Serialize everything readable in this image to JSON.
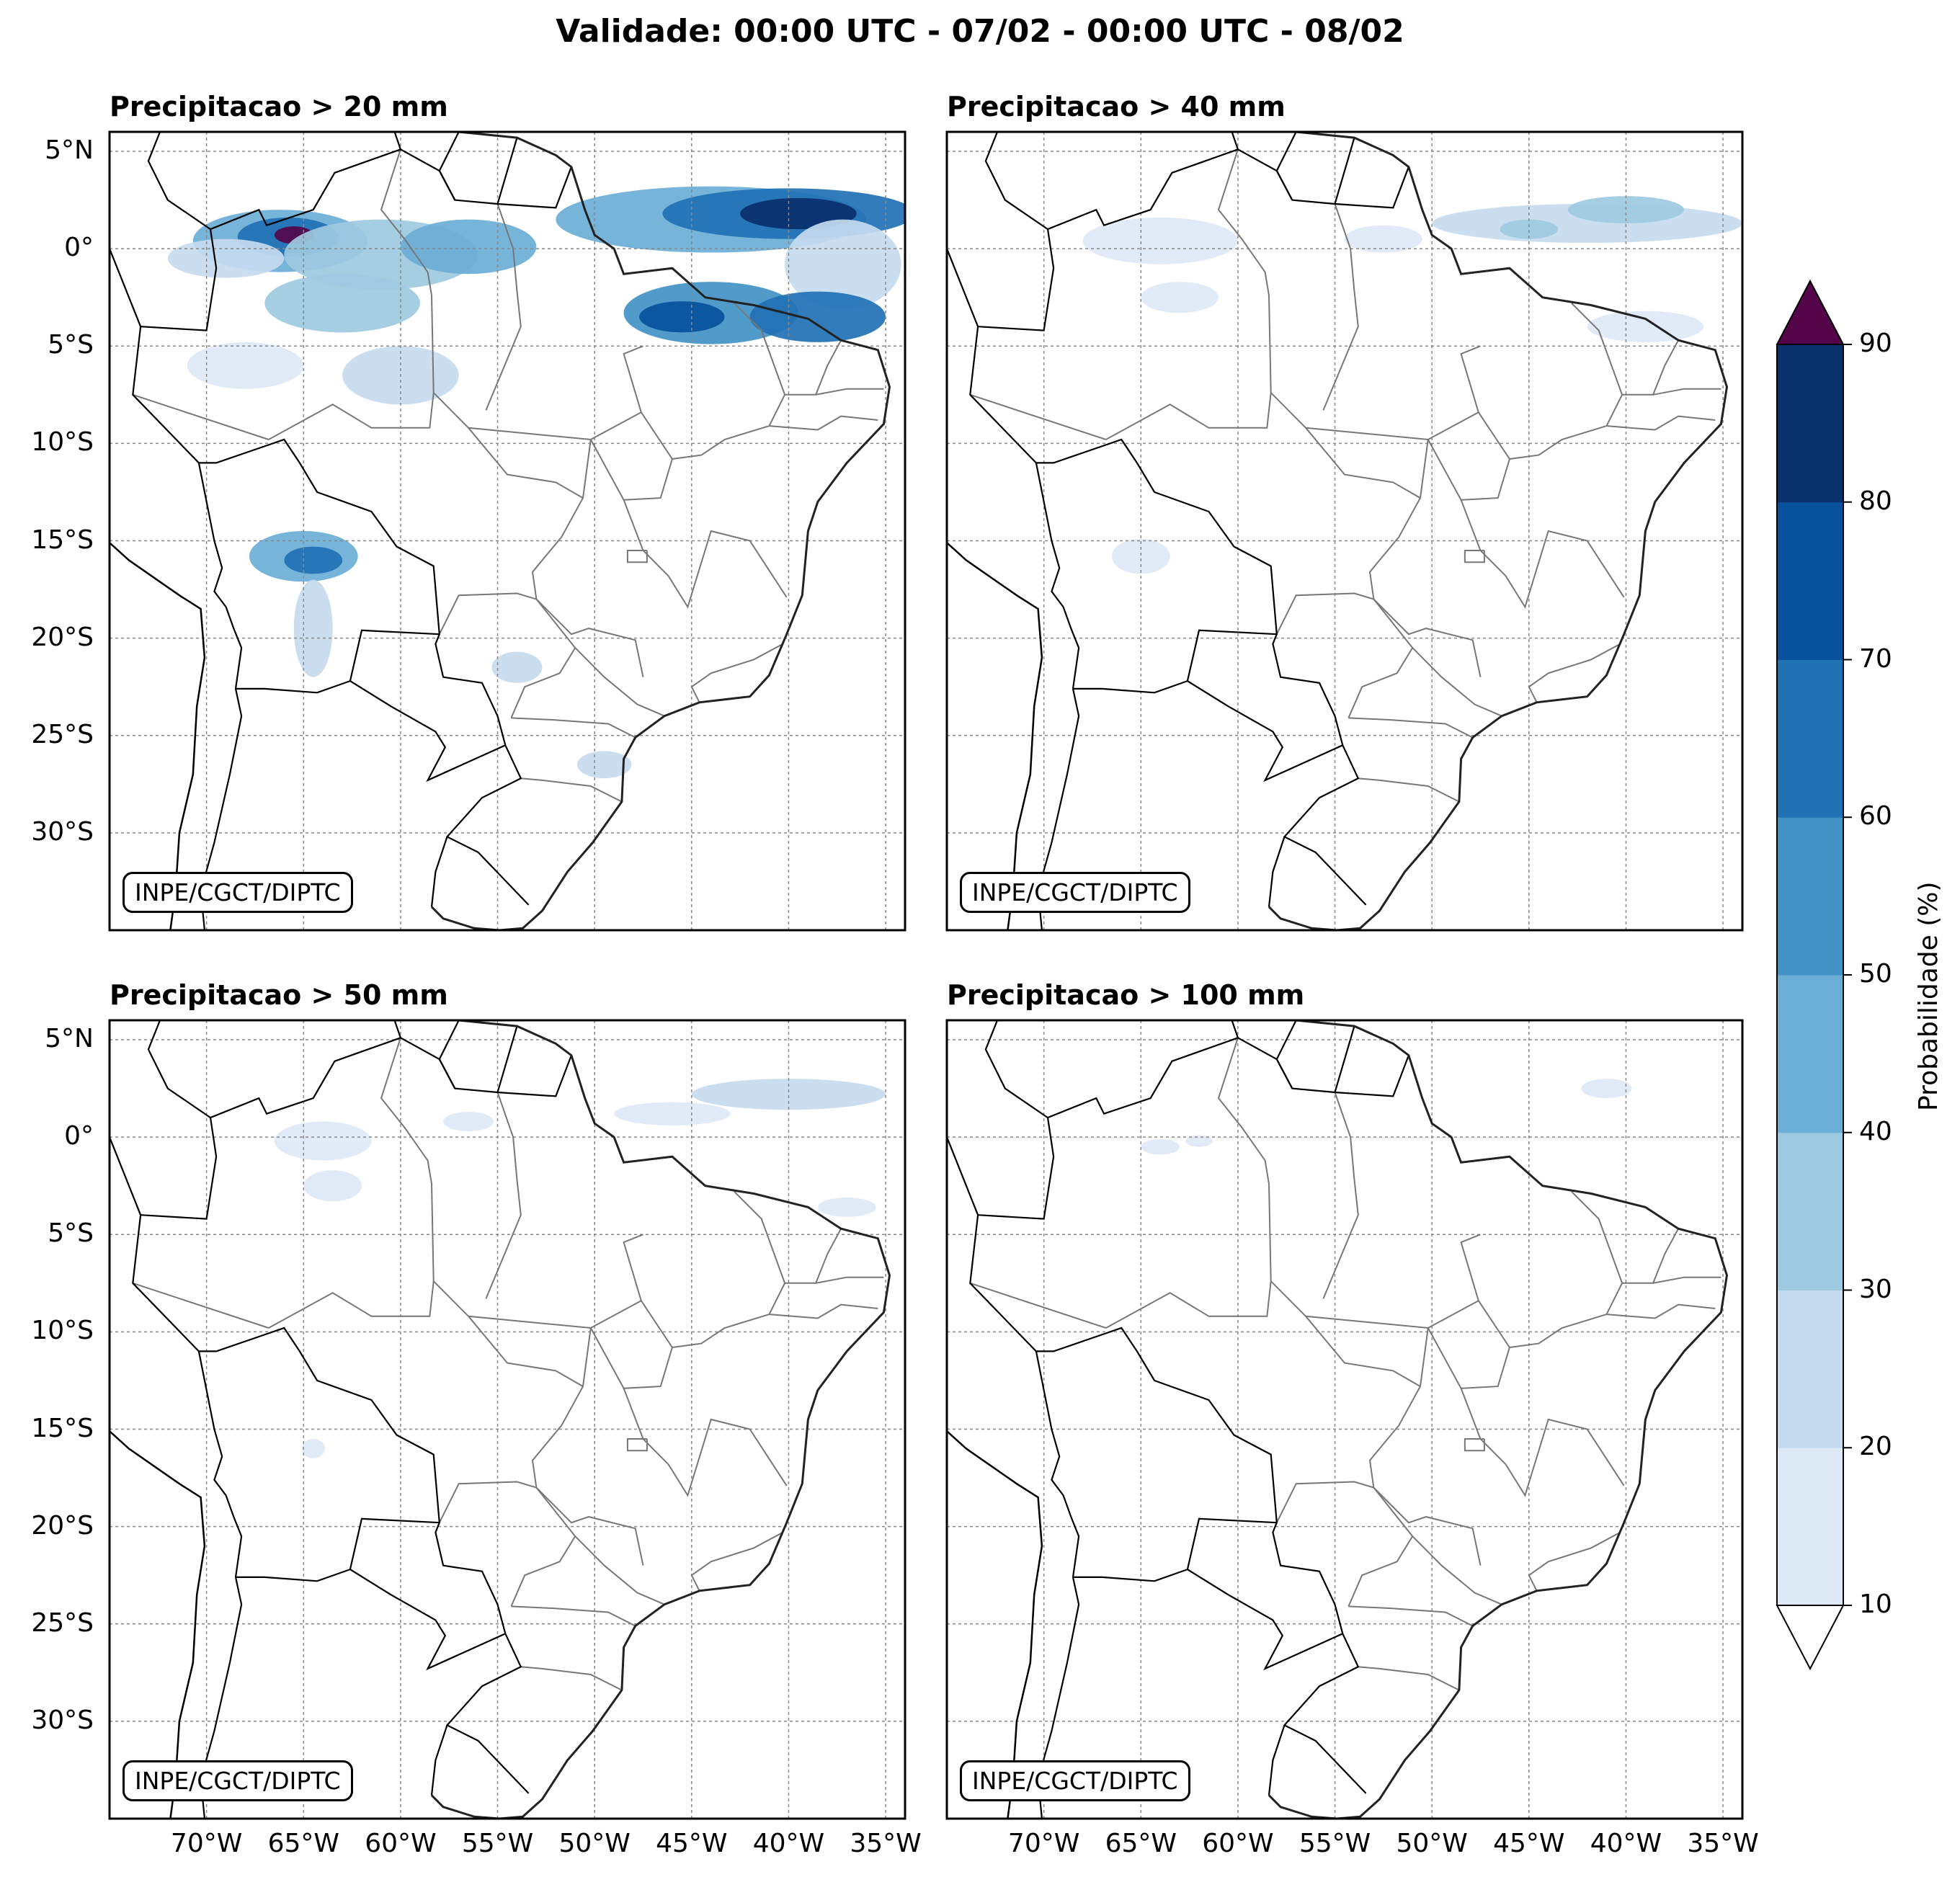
{
  "title": "Validade: 00:00 UTC - 07/02 - 00:00 UTC - 08/02",
  "credit": "INPE/CGCT/DIPTC",
  "lat_ticks": [
    "5°N",
    "0°",
    "5°S",
    "10°S",
    "15°S",
    "20°S",
    "25°S",
    "30°S"
  ],
  "lon_ticks": [
    "70°W",
    "65°W",
    "60°W",
    "55°W",
    "50°W",
    "45°W",
    "40°W",
    "35°W"
  ],
  "extent": {
    "lon_min": -75,
    "lon_max": -34,
    "lat_min": -35,
    "lat_max": 6
  },
  "panels": [
    {
      "title": "Precipitacao > 20 mm",
      "blobs": [
        {
          "lon": -66.2,
          "lat": 0.4,
          "rx": 4.5,
          "ry": 1.6,
          "level": 3
        },
        {
          "lon": -65.8,
          "lat": 0.6,
          "rx": 2.6,
          "ry": 1.0,
          "level": 5
        },
        {
          "lon": -65.5,
          "lat": 0.7,
          "rx": 1.0,
          "ry": 0.45,
          "level": 8
        },
        {
          "lon": -61.0,
          "lat": -0.3,
          "rx": 5.0,
          "ry": 1.8,
          "level": 2
        },
        {
          "lon": -56.5,
          "lat": 0.1,
          "rx": 3.5,
          "ry": 1.4,
          "level": 3
        },
        {
          "lon": -63.0,
          "lat": -2.8,
          "rx": 4.0,
          "ry": 1.5,
          "level": 2
        },
        {
          "lon": -60.0,
          "lat": -6.5,
          "rx": 3.0,
          "ry": 1.5,
          "level": 1
        },
        {
          "lon": -69.0,
          "lat": -0.5,
          "rx": 3.0,
          "ry": 1.0,
          "level": 1
        },
        {
          "lon": -68.0,
          "lat": -6.0,
          "rx": 3.0,
          "ry": 1.2,
          "level": 0
        },
        {
          "lon": -44.0,
          "lat": 1.5,
          "rx": 8.0,
          "ry": 1.7,
          "level": 3
        },
        {
          "lon": -40.0,
          "lat": 1.8,
          "rx": 6.5,
          "ry": 1.3,
          "level": 5
        },
        {
          "lon": -39.5,
          "lat": 1.8,
          "rx": 3.0,
          "ry": 0.8,
          "level": 7
        },
        {
          "lon": -37.2,
          "lat": -0.8,
          "rx": 3.0,
          "ry": 2.3,
          "level": 1
        },
        {
          "lon": -44.0,
          "lat": -3.3,
          "rx": 4.5,
          "ry": 1.6,
          "level": 4
        },
        {
          "lon": -45.5,
          "lat": -3.5,
          "rx": 2.2,
          "ry": 0.8,
          "level": 6
        },
        {
          "lon": -38.5,
          "lat": -3.5,
          "rx": 3.5,
          "ry": 1.3,
          "level": 5
        },
        {
          "lon": -65.0,
          "lat": -15.8,
          "rx": 2.8,
          "ry": 1.3,
          "level": 3
        },
        {
          "lon": -64.5,
          "lat": -16.0,
          "rx": 1.5,
          "ry": 0.7,
          "level": 5
        },
        {
          "lon": -64.5,
          "lat": -19.5,
          "rx": 1.0,
          "ry": 2.5,
          "level": 1
        },
        {
          "lon": -54.0,
          "lat": -21.5,
          "rx": 1.3,
          "ry": 0.8,
          "level": 1
        },
        {
          "lon": -49.5,
          "lat": -26.5,
          "rx": 1.4,
          "ry": 0.7,
          "level": 1
        }
      ]
    },
    {
      "title": "Precipitacao > 40 mm",
      "blobs": [
        {
          "lon": -42.0,
          "lat": 1.3,
          "rx": 8.0,
          "ry": 1.0,
          "level": 1
        },
        {
          "lon": -40.0,
          "lat": 2.0,
          "rx": 3.0,
          "ry": 0.7,
          "level": 2
        },
        {
          "lon": -45.0,
          "lat": 1.0,
          "rx": 1.5,
          "ry": 0.5,
          "level": 2
        },
        {
          "lon": -64.0,
          "lat": 0.4,
          "rx": 4.0,
          "ry": 1.2,
          "level": 0
        },
        {
          "lon": -63.0,
          "lat": -2.5,
          "rx": 2.0,
          "ry": 0.8,
          "level": 0
        },
        {
          "lon": -52.5,
          "lat": 0.5,
          "rx": 2.0,
          "ry": 0.7,
          "level": 0
        },
        {
          "lon": -65.0,
          "lat": -15.8,
          "rx": 1.5,
          "ry": 0.9,
          "level": 0
        },
        {
          "lon": -39.0,
          "lat": -4.0,
          "rx": 3.0,
          "ry": 0.8,
          "level": 0
        }
      ]
    },
    {
      "title": "Precipitacao > 50 mm",
      "blobs": [
        {
          "lon": -40.0,
          "lat": 2.2,
          "rx": 5.0,
          "ry": 0.8,
          "level": 1
        },
        {
          "lon": -46.0,
          "lat": 1.2,
          "rx": 3.0,
          "ry": 0.6,
          "level": 0
        },
        {
          "lon": -64.0,
          "lat": -0.2,
          "rx": 2.5,
          "ry": 1.0,
          "level": 0
        },
        {
          "lon": -63.5,
          "lat": -2.5,
          "rx": 1.5,
          "ry": 0.8,
          "level": 0
        },
        {
          "lon": -56.5,
          "lat": 0.8,
          "rx": 1.3,
          "ry": 0.5,
          "level": 0
        },
        {
          "lon": -37.0,
          "lat": -3.6,
          "rx": 1.5,
          "ry": 0.5,
          "level": 0
        },
        {
          "lon": -64.5,
          "lat": -16.0,
          "rx": 0.6,
          "ry": 0.5,
          "level": 0
        }
      ]
    },
    {
      "title": "Precipitacao > 100 mm",
      "blobs": [
        {
          "lon": -41.0,
          "lat": 2.5,
          "rx": 1.3,
          "ry": 0.5,
          "level": 0
        },
        {
          "lon": -64.0,
          "lat": -0.5,
          "rx": 1.0,
          "ry": 0.4,
          "level": 0
        },
        {
          "lon": -62.0,
          "lat": -0.2,
          "rx": 0.7,
          "ry": 0.3,
          "level": 0
        }
      ]
    }
  ],
  "colorbar": {
    "label": "Probabilidade (%)",
    "ticks": [
      "10",
      "20",
      "30",
      "40",
      "50",
      "60",
      "70",
      "80",
      "90"
    ],
    "colors": [
      "#dee9f6",
      "#c6dbef",
      "#9ecae1",
      "#6baed6",
      "#4292c6",
      "#2171b5",
      "#08519c",
      "#08306b"
    ],
    "over_color": "#54054a",
    "under_color": "#ffffff"
  }
}
